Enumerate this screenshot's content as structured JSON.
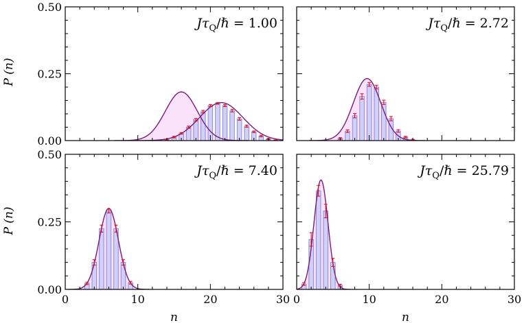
{
  "chart_data": [
    {
      "type": "bar",
      "panel": "top-left",
      "annotation": {
        "lhs": "Jτ",
        "sub": "Q",
        "rhs": "/ℏ = 1.00"
      },
      "xlabel": "",
      "ylabel": "P (n)",
      "xlim": [
        0,
        30
      ],
      "ylim": [
        0,
        0.5
      ],
      "xticks": [],
      "yticks": [
        "0.00",
        "0.25",
        "0.50"
      ],
      "bars": {
        "n": [
          14,
          15,
          16,
          17,
          18,
          19,
          20,
          21,
          22,
          23,
          24,
          25,
          26,
          27,
          28,
          29
        ],
        "values": [
          0.003,
          0.013,
          0.027,
          0.05,
          0.078,
          0.108,
          0.131,
          0.139,
          0.131,
          0.112,
          0.081,
          0.054,
          0.033,
          0.017,
          0.006,
          0.002
        ],
        "errors": [
          0.002,
          0.003,
          0.003,
          0.004,
          0.005,
          0.005,
          0.004,
          0.003,
          0.004,
          0.005,
          0.005,
          0.004,
          0.003,
          0.003,
          0.002,
          0.001
        ]
      },
      "curves": [
        {
          "type": "gaussian",
          "mean": 16.0,
          "sigma": 2.2,
          "peak": 0.182,
          "color": "#7a1a7a",
          "shaded": true
        },
        {
          "type": "gaussian",
          "mean": 21.5,
          "sigma": 3.0,
          "peak": 0.142,
          "color": "#7a1a7a",
          "shaded": false
        }
      ]
    },
    {
      "type": "bar",
      "panel": "top-right",
      "annotation": {
        "lhs": "Jτ",
        "sub": "Q",
        "rhs": "/ℏ = 2.72"
      },
      "xlabel": "",
      "ylabel": "",
      "xlim": [
        0,
        30
      ],
      "ylim": [
        0,
        0.5
      ],
      "xticks": [],
      "yticks": [],
      "bars": {
        "n": [
          6,
          7,
          8,
          9,
          10,
          11,
          12,
          13,
          14,
          15,
          16
        ],
        "values": [
          0.008,
          0.035,
          0.093,
          0.165,
          0.21,
          0.2,
          0.143,
          0.082,
          0.036,
          0.013,
          0.003
        ],
        "errors": [
          0.003,
          0.005,
          0.008,
          0.01,
          0.007,
          0.007,
          0.008,
          0.008,
          0.005,
          0.003,
          0.002
        ]
      },
      "curves": [
        {
          "type": "gaussian",
          "mean": 9.7,
          "sigma": 1.9,
          "peak": 0.232,
          "color": "#7a1a7a",
          "shaded": true
        }
      ]
    },
    {
      "type": "bar",
      "panel": "bottom-left",
      "annotation": {
        "lhs": "Jτ",
        "sub": "Q",
        "rhs": "/ℏ = 7.40"
      },
      "xlabel": "n",
      "ylabel": "P (n)",
      "xlim": [
        0,
        30
      ],
      "ylim": [
        0,
        0.5
      ],
      "xticks": [
        "0",
        "10",
        "20",
        "30"
      ],
      "yticks": [
        "0.00",
        "0.25",
        "0.50"
      ],
      "bars": {
        "n": [
          3,
          4,
          5,
          6,
          7,
          8,
          9
        ],
        "values": [
          0.022,
          0.1,
          0.225,
          0.29,
          0.225,
          0.1,
          0.025
        ],
        "errors": [
          0.004,
          0.01,
          0.013,
          0.007,
          0.013,
          0.01,
          0.005
        ]
      },
      "curves": [
        {
          "type": "gaussian",
          "mean": 6.0,
          "sigma": 1.33,
          "peak": 0.3,
          "color": "#7a1a7a",
          "shaded": true
        }
      ]
    },
    {
      "type": "bar",
      "panel": "bottom-right",
      "annotation": {
        "lhs": "Jτ",
        "sub": "Q",
        "rhs": "/ℏ = 25.79"
      },
      "xlabel": "n",
      "ylabel": "",
      "xlim": [
        0,
        30
      ],
      "ylim": [
        0,
        0.5
      ],
      "xticks": [
        "0",
        "10",
        "20",
        "30"
      ],
      "yticks": [],
      "bars": {
        "n": [
          1,
          2,
          3,
          4,
          5,
          6
        ],
        "values": [
          0.02,
          0.185,
          0.365,
          0.29,
          0.1,
          0.015
        ],
        "errors": [
          0.005,
          0.025,
          0.02,
          0.025,
          0.015,
          0.004
        ]
      },
      "curves": [
        {
          "type": "gaussian",
          "mean": 3.35,
          "sigma": 0.97,
          "peak": 0.405,
          "color": "#7a1a7a",
          "shaded": true
        }
      ]
    }
  ],
  "style": {
    "bar_fill": "#d2d0f4",
    "bar_edge": "#8a88e6",
    "error_color": "#e8101a",
    "curve_color": "#7a1a7a",
    "curve_color_right": "#3a2ab8",
    "shade_color": "#fbe2fb"
  }
}
